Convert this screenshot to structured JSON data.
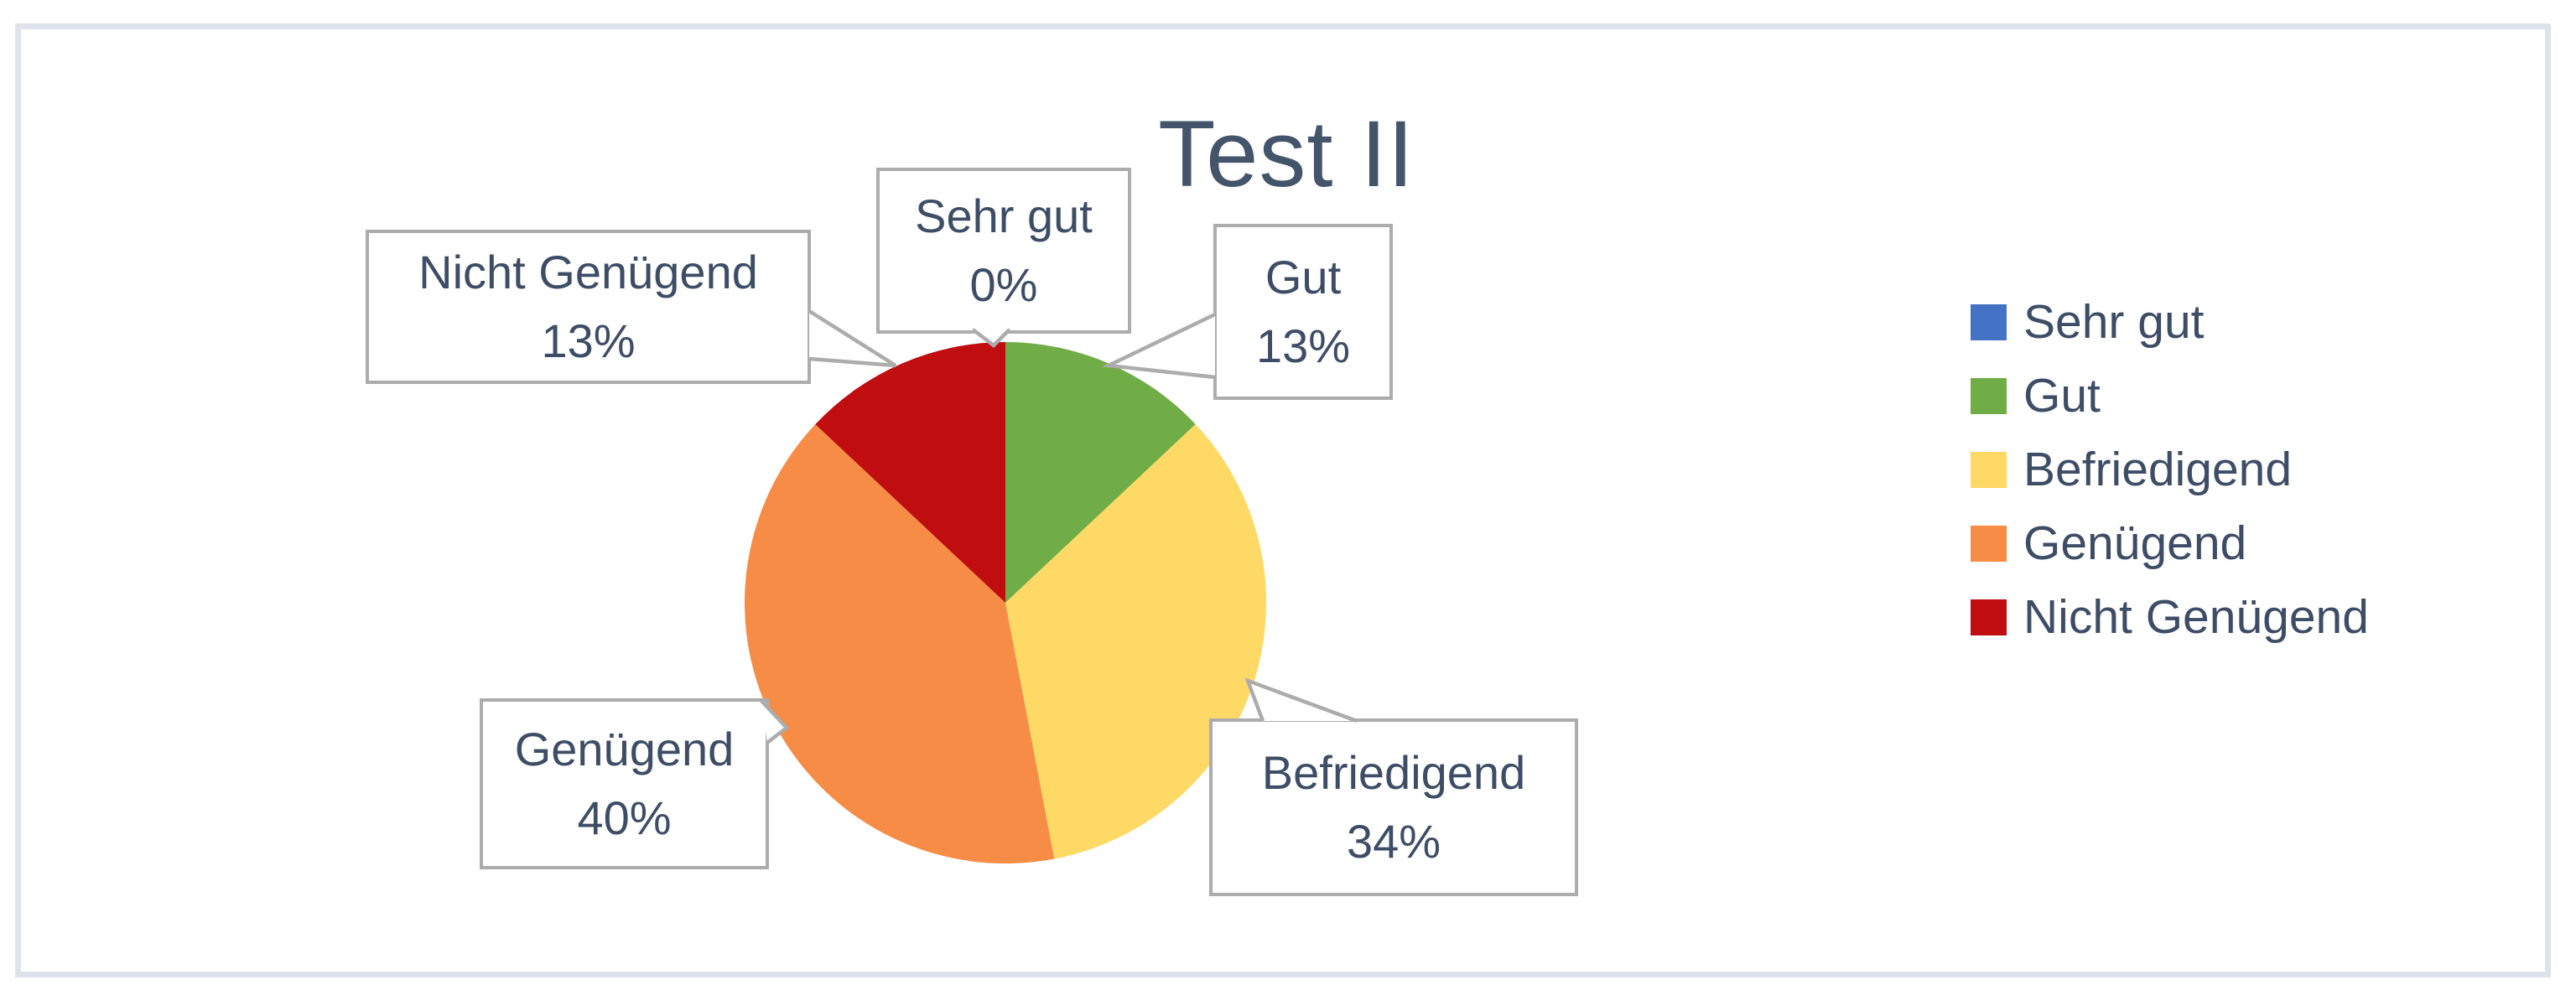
{
  "chart_data": {
    "type": "pie",
    "title": "Test II",
    "categories": [
      "Sehr gut",
      "Gut",
      "Befriedigend",
      "Genügend",
      "Nicht Genügend"
    ],
    "values": [
      0,
      13,
      34,
      40,
      13
    ],
    "unit": "percent",
    "colors": [
      "#4472c4",
      "#70ad47",
      "#ffd966",
      "#f78c46",
      "#bf0d10"
    ],
    "start_angle_deg": 0,
    "direction": "clockwise",
    "legend_position": "right",
    "grid": false,
    "data_labels": [
      {
        "name": "Sehr gut",
        "pct": "0%"
      },
      {
        "name": "Gut",
        "pct": "13%"
      },
      {
        "name": "Befriedigend",
        "pct": "34%"
      },
      {
        "name": "Genügend",
        "pct": "40%"
      },
      {
        "name": "Nicht Genügend",
        "pct": "13%"
      }
    ]
  },
  "ui_colors": {
    "frame_border": "#dee3eb",
    "callout_border": "#acacac",
    "leader_line": "#acacac",
    "text": "#3e4d66",
    "title": "#44546a",
    "background": "#ffffff"
  }
}
